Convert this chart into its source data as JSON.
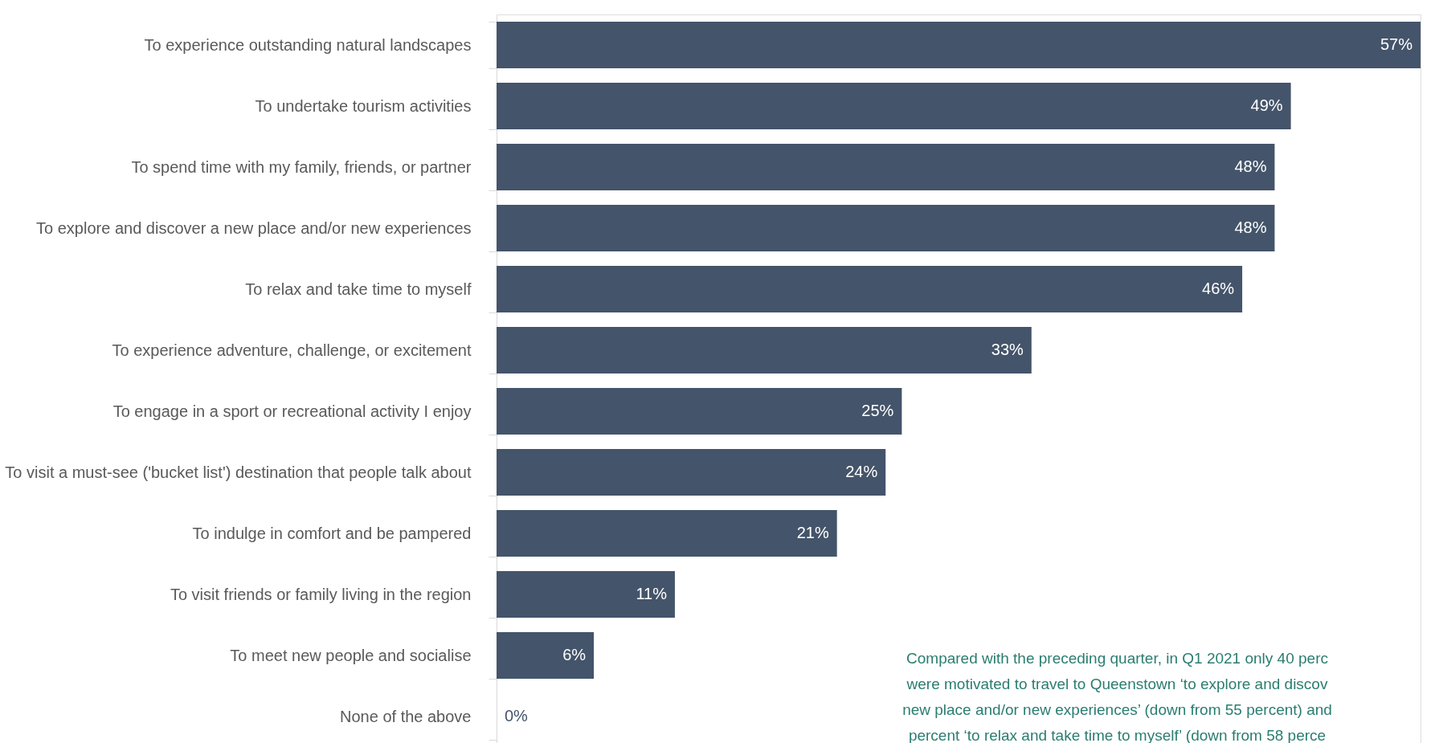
{
  "chart_data": {
    "type": "bar",
    "orientation": "horizontal",
    "grid": false,
    "categories": [
      "To experience outstanding natural landscapes",
      "To undertake tourism activities",
      "To spend time with my family, friends, or partner",
      "To explore and discover a new place and/or new experiences",
      "To relax and take time to myself",
      "To experience adventure, challenge, or excitement",
      "To engage in a sport or recreational activity I enjoy",
      "To visit a must-see ('bucket list') destination that people talk about",
      "To indulge in comfort and be pampered",
      "To visit friends or family living in the region",
      "To meet new people and socialise",
      "None of the above"
    ],
    "values": [
      57,
      49,
      48,
      48,
      46,
      33,
      25,
      24,
      21,
      11,
      6,
      0
    ],
    "color": "#44546a",
    "value_labels": [
      "57%",
      "49%",
      "48%",
      "48%",
      "46%",
      "33%",
      "25%",
      "24%",
      "21%",
      "11%",
      "6%",
      "0%"
    ],
    "annotations": [
      "Compared with the preceding quarter, in Q1 2021 only 40 perc were motivated to travel to Queenstown ‘to explore and discov new place and/or new experiences’ (down from 55 percent) and percent ‘to relax and take time to myself’ (down from 58 perce"
    ]
  }
}
